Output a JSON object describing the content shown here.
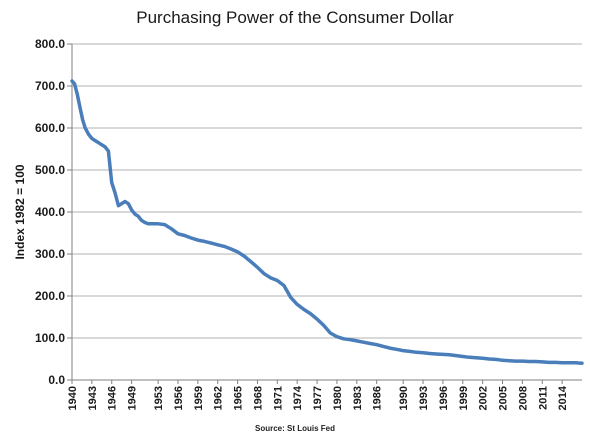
{
  "chart_data": {
    "type": "line",
    "title": "Purchasing Power of the Consumer Dollar",
    "xlabel": "",
    "ylabel": "Index 1982 =  100",
    "source": "Source: St Louis Fed",
    "ylim": [
      0,
      800
    ],
    "xlim": [
      1940,
      2017
    ],
    "y_ticks": [
      "0.0",
      "100.0",
      "200.0",
      "300.0",
      "400.0",
      "500.0",
      "600.0",
      "700.0",
      "800.0"
    ],
    "x_ticks": [
      "1940",
      "1943",
      "1946",
      "1949",
      "1953",
      "1956",
      "1959",
      "1962",
      "1965",
      "1968",
      "1971",
      "1974",
      "1977",
      "1980",
      "1983",
      "1986",
      "1990",
      "1993",
      "1996",
      "1999",
      "2002",
      "2005",
      "2008",
      "2011",
      "2014"
    ],
    "grid": true,
    "line_color": "#4a7ebb",
    "series": [
      {
        "x": [
          1940,
          1940.4,
          1940.8,
          1941.2,
          1941.6,
          1942.0,
          1942.5,
          1943.0,
          1943.5,
          1944.0,
          1944.5,
          1945.0,
          1945.5,
          1946.0,
          1946.5,
          1947.0,
          1947.5,
          1948.0,
          1948.5,
          1949.0,
          1949.5,
          1950.0,
          1950.5,
          1951.0,
          1951.5,
          1952.0,
          1953.0,
          1954.0,
          1955.0,
          1956.0,
          1957.0,
          1958.0,
          1959.0,
          1960.0,
          1961.0,
          1962.0,
          1963.0,
          1964.0,
          1965.0,
          1966.0,
          1967.0,
          1968.0,
          1969.0,
          1970.0,
          1971.0,
          1972.0,
          1973.0,
          1974.0,
          1975.0,
          1976.0,
          1977.0,
          1978.0,
          1979.0,
          1980.0,
          1981.0,
          1982.0,
          1983.0,
          1984.0,
          1985.0,
          1986.0,
          1987.0,
          1988.0,
          1989.0,
          1990.0,
          1991.0,
          1992.0,
          1993.0,
          1994.0,
          1995.0,
          1996.0,
          1997.0,
          1998.0,
          1999.0,
          2000.0,
          2001.0,
          2002.0,
          2003.0,
          2004.0,
          2005.0,
          2006.0,
          2007.0,
          2008.0,
          2009.0,
          2010.0,
          2011.0,
          2012.0,
          2013.0,
          2014.0,
          2015.0,
          2016.0,
          2017.0
        ],
        "values": [
          712,
          705,
          680,
          650,
          620,
          600,
          585,
          575,
          570,
          565,
          560,
          555,
          545,
          470,
          445,
          415,
          420,
          425,
          420,
          405,
          395,
          390,
          380,
          375,
          372,
          372,
          372,
          370,
          360,
          348,
          344,
          338,
          333,
          330,
          326,
          322,
          318,
          312,
          305,
          295,
          282,
          268,
          253,
          243,
          237,
          225,
          197,
          180,
          168,
          158,
          145,
          130,
          112,
          103,
          98,
          96,
          93,
          90,
          87,
          84,
          80,
          76,
          73,
          70,
          68,
          66,
          65,
          63,
          62,
          61,
          60,
          58,
          56,
          54,
          53,
          52,
          50,
          49,
          47,
          46,
          45,
          45,
          44,
          44,
          43,
          42,
          42,
          41,
          41,
          41,
          40
        ]
      }
    ]
  }
}
